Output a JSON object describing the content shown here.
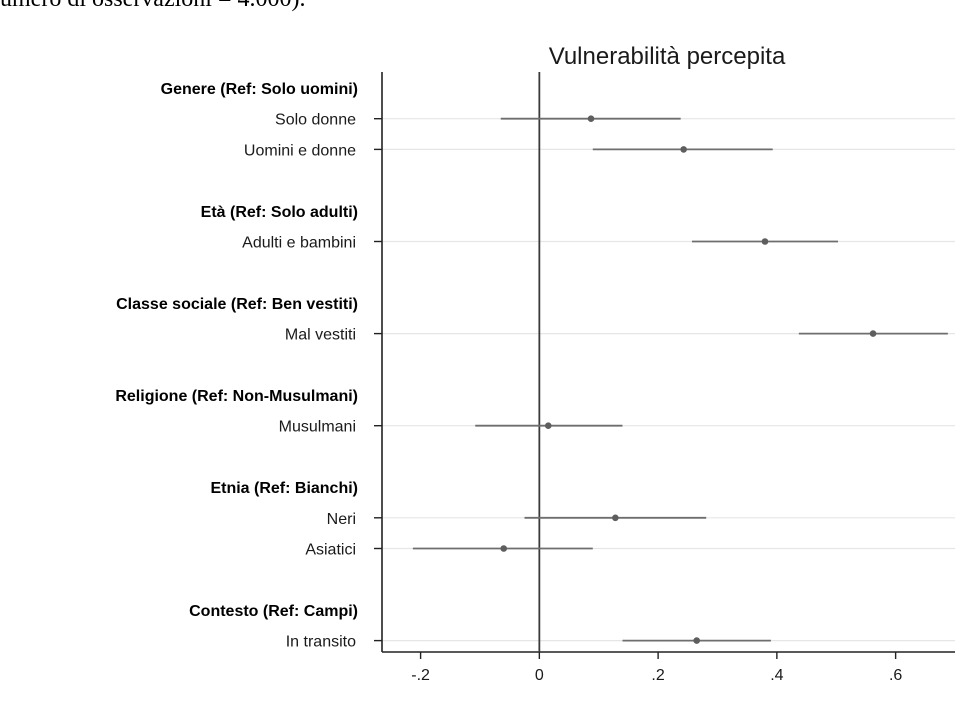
{
  "caption_fragment": "umero di osservazioni = 4.000).",
  "chart_data": {
    "type": "scatter",
    "title": "Vulnerabilità percepita",
    "xlabel": "",
    "ylabel": "",
    "xlim": [
      -0.265,
      0.7
    ],
    "xticks": [
      {
        "value": -0.2,
        "label": "-.2"
      },
      {
        "value": 0,
        "label": "0"
      },
      {
        "value": 0.2,
        "label": ".2"
      },
      {
        "value": 0.4,
        "label": ".4"
      },
      {
        "value": 0.6,
        "label": ".6"
      }
    ],
    "reference_line": 0,
    "grid": true,
    "rows": [
      {
        "kind": "group",
        "label": "Genere (Ref: Solo uomini)"
      },
      {
        "kind": "item",
        "label": "Solo donne",
        "estimate": 0.087,
        "ci_low": -0.065,
        "ci_high": 0.238
      },
      {
        "kind": "item",
        "label": "Uomini e donne",
        "estimate": 0.243,
        "ci_low": 0.09,
        "ci_high": 0.393
      },
      {
        "kind": "gap"
      },
      {
        "kind": "group",
        "label": "Età (Ref: Solo adulti)"
      },
      {
        "kind": "item",
        "label": "Adulti e bambini",
        "estimate": 0.38,
        "ci_low": 0.257,
        "ci_high": 0.503
      },
      {
        "kind": "gap"
      },
      {
        "kind": "group",
        "label": "Classe sociale (Ref: Ben vestiti)"
      },
      {
        "kind": "item",
        "label": "Mal vestiti",
        "estimate": 0.562,
        "ci_low": 0.437,
        "ci_high": 0.688
      },
      {
        "kind": "gap"
      },
      {
        "kind": "group",
        "label": "Religione (Ref: Non-Musulmani)"
      },
      {
        "kind": "item",
        "label": "Musulmani",
        "estimate": 0.015,
        "ci_low": -0.108,
        "ci_high": 0.14
      },
      {
        "kind": "gap"
      },
      {
        "kind": "group",
        "label": "Etnia (Ref: Bianchi)"
      },
      {
        "kind": "item",
        "label": "Neri",
        "estimate": 0.128,
        "ci_low": -0.025,
        "ci_high": 0.281
      },
      {
        "kind": "item",
        "label": "Asiatici",
        "estimate": -0.06,
        "ci_low": -0.213,
        "ci_high": 0.09
      },
      {
        "kind": "gap"
      },
      {
        "kind": "group",
        "label": "Contesto (Ref: Campi)"
      },
      {
        "kind": "item",
        "label": "In transito",
        "estimate": 0.265,
        "ci_low": 0.14,
        "ci_high": 0.39
      }
    ]
  }
}
